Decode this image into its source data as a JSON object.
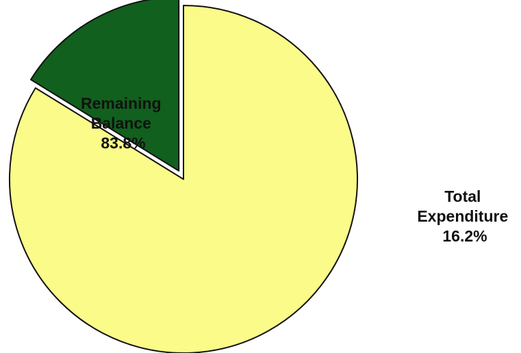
{
  "chart_data": {
    "type": "pie",
    "slices": [
      {
        "label_lines": [
          "Remaining",
          "Balance"
        ],
        "value": 83.8,
        "value_label": "83.8%",
        "color": "#fbfb8a",
        "exploded": false
      },
      {
        "label_lines": [
          "Total",
          "Expenditure"
        ],
        "value": 16.2,
        "value_label": "16.2%",
        "color": "#11601e",
        "exploded": true
      }
    ],
    "start_angle_deg": 90,
    "direction": "clockwise",
    "edge_color": "#111111",
    "legend": "none"
  }
}
